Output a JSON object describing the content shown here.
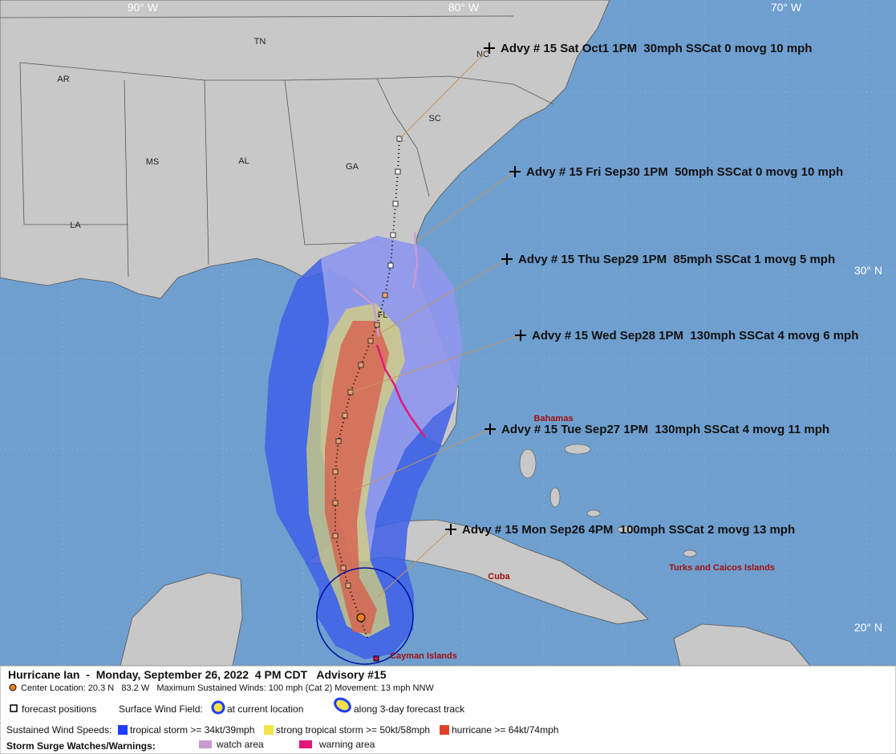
{
  "map": {
    "longitude_labels": [
      "90° W",
      "80° W",
      "70° W"
    ],
    "latitude_labels": [
      "30° N",
      "20° N"
    ],
    "region_labels": [
      "TN",
      "AR",
      "MS",
      "AL",
      "GA",
      "SC",
      "NC",
      "LA",
      "FL"
    ],
    "place_labels": [
      "Bahamas",
      "Cuba",
      "Turks and Caicos Islands",
      "Cayman Islands"
    ],
    "advisories": [
      "Advy # 15 Sat Oct1 1PM  30mph SSCat 0 movg 10 mph",
      "Advy # 15 Fri Sep30 1PM  50mph SSCat 0 movg 10 mph",
      "Advy # 15 Thu Sep29 1PM  85mph SSCat 1 movg 5 mph",
      "Advy # 15 Wed Sep28 1PM  130mph SSCat 4 movg 6 mph",
      "Advy # 15 Tue Sep27 1PM  130mph SSCat 4 movg 11 mph",
      "Advy # 15 Mon Sep26 4PM  100mph SSCat 2 movg 13 mph"
    ]
  },
  "legend": {
    "title": "Hurricane Ian  -  Monday, September 26, 2022  4 PM CDT   Advisory #15",
    "center": "Center Location: 20.3 N   83.2 W   Maximum Sustained Winds: 100 mph (Cat 2) Movement: 13 mph NNW",
    "forecast_positions": "forecast positions",
    "surface_wind_field": "Surface Wind Field:",
    "at_current_location": "at current location",
    "along_track": "along 3-day forecast track",
    "sustained_wind_speeds": "Sustained Wind Speeds:",
    "tropical_storm": "tropical storm >= 34kt/39mph",
    "strong_tropical_storm": "strong tropical storm >= 50kt/58mph",
    "hurricane": "hurricane >= 64kt/74mph",
    "storm_surge": "Storm Surge Watches/Warnings:",
    "watch_area": "watch area",
    "warning_area": "warning area"
  }
}
